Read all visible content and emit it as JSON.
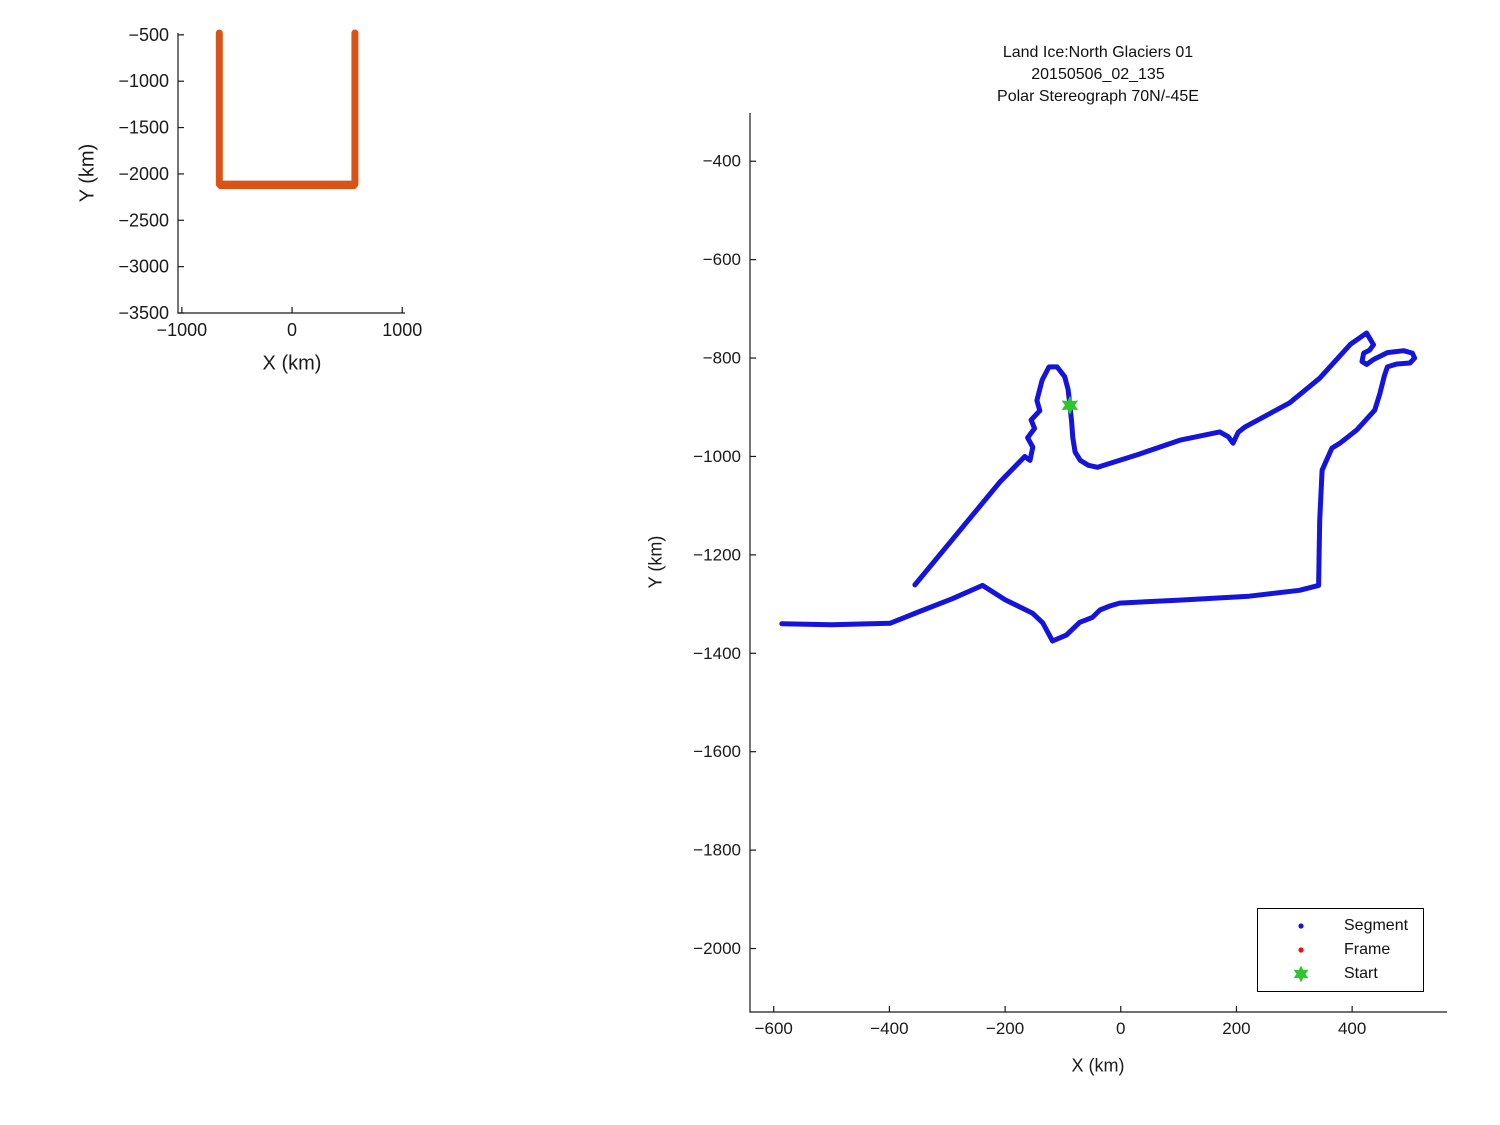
{
  "chart_data": [
    {
      "type": "line",
      "role": "overview-plot",
      "title": "",
      "xlabel": "X (km)",
      "ylabel": "Y (km)",
      "xlim": [
        -1035,
        1025
      ],
      "ylim": [
        -3500,
        -480
      ],
      "xticks": [
        -1000,
        0,
        1000
      ],
      "yticks": [
        -500,
        -1000,
        -1500,
        -2000,
        -2500,
        -3000,
        -3500
      ],
      "grid": false,
      "series": [
        {
          "name": "track-outline",
          "color": "#D95319",
          "width": 7,
          "points": [
            [
              -660,
              -480
            ],
            [
              -660,
              -2110
            ],
            [
              570,
              -2110
            ],
            [
              570,
              -480
            ]
          ]
        },
        {
          "name": "track-outline-bottom",
          "color": "#D95319",
          "width": 6,
          "points": [
            [
              -650,
              -2131
            ],
            [
              562,
              -2131
            ]
          ]
        }
      ]
    },
    {
      "type": "line",
      "role": "main-plot",
      "title_lines": [
        "Land Ice:North Glaciers 01",
        "20150506_02_135",
        "Polar Stereograph 70N/-45E"
      ],
      "xlabel": "X (km)",
      "ylabel": "Y (km)",
      "xlim": [
        -641,
        564
      ],
      "ylim": [
        -2129,
        -302
      ],
      "xticks": [
        -600,
        -400,
        -200,
        0,
        200,
        400
      ],
      "yticks": [
        -400,
        -600,
        -800,
        -1000,
        -1200,
        -1400,
        -1600,
        -1800,
        -2000
      ],
      "grid": false,
      "series": [
        {
          "name": "segment",
          "color": "#1414DD",
          "width": 5,
          "points": [
            [
              -356,
              -1261
            ],
            [
              -209,
              -1052
            ],
            [
              -166,
              -1000
            ],
            [
              -157,
              -1008
            ],
            [
              -152,
              -981
            ],
            [
              -161,
              -962
            ],
            [
              -149,
              -943
            ],
            [
              -155,
              -926
            ],
            [
              -140,
              -907
            ],
            [
              -145,
              -886
            ],
            [
              -136,
              -845
            ],
            [
              -124,
              -818
            ],
            [
              -110,
              -818
            ],
            [
              -97,
              -838
            ],
            [
              -91,
              -864
            ],
            [
              -88,
              -896
            ],
            [
              -85,
              -929
            ],
            [
              -83,
              -962
            ],
            [
              -79,
              -991
            ],
            [
              -70,
              -1008
            ],
            [
              -56,
              -1018
            ],
            [
              -40,
              -1022
            ],
            [
              30,
              -996
            ],
            [
              102,
              -967
            ],
            [
              171,
              -950
            ],
            [
              186,
              -960
            ],
            [
              194,
              -973
            ],
            [
              203,
              -951
            ],
            [
              215,
              -940
            ],
            [
              292,
              -891
            ],
            [
              344,
              -841
            ],
            [
              397,
              -772
            ],
            [
              425,
              -749
            ],
            [
              437,
              -773
            ],
            [
              430,
              -784
            ],
            [
              420,
              -790
            ],
            [
              417,
              -807
            ],
            [
              425,
              -813
            ],
            [
              437,
              -803
            ],
            [
              461,
              -789
            ],
            [
              489,
              -785
            ],
            [
              504,
              -790
            ],
            [
              508,
              -800
            ],
            [
              500,
              -810
            ],
            [
              477,
              -812
            ],
            [
              461,
              -818
            ],
            [
              456,
              -835
            ],
            [
              448,
              -872
            ],
            [
              439,
              -906
            ],
            [
              408,
              -946
            ],
            [
              380,
              -972
            ],
            [
              365,
              -983
            ],
            [
              348,
              -1028
            ],
            [
              344,
              -1130
            ],
            [
              342,
              -1262
            ],
            [
              309,
              -1272
            ],
            [
              222,
              -1284
            ],
            [
              102,
              -1292
            ],
            [
              -2,
              -1298
            ],
            [
              -19,
              -1304
            ],
            [
              -36,
              -1312
            ],
            [
              -49,
              -1327
            ],
            [
              -71,
              -1337
            ],
            [
              -94,
              -1363
            ],
            [
              -118,
              -1375
            ],
            [
              -135,
              -1338
            ],
            [
              -152,
              -1319
            ],
            [
              -200,
              -1291
            ],
            [
              -239,
              -1262
            ],
            [
              -291,
              -1289
            ],
            [
              -350,
              -1316
            ],
            [
              -399,
              -1339
            ],
            [
              -500,
              -1342
            ],
            [
              -586,
              -1340
            ]
          ]
        },
        {
          "name": "frame",
          "color": "#EE1111",
          "width": 3,
          "points": []
        }
      ],
      "start_marker": {
        "x": -88,
        "y": -896,
        "color": "#2EC52E"
      },
      "legend": {
        "position": "bottom-right",
        "items": [
          {
            "label": "Segment",
            "marker": "dot",
            "color": "#1414DD"
          },
          {
            "label": "Frame",
            "marker": "dot",
            "color": "#EE1111"
          },
          {
            "label": "Start",
            "marker": "star",
            "color": "#2EC52E"
          }
        ]
      }
    }
  ]
}
